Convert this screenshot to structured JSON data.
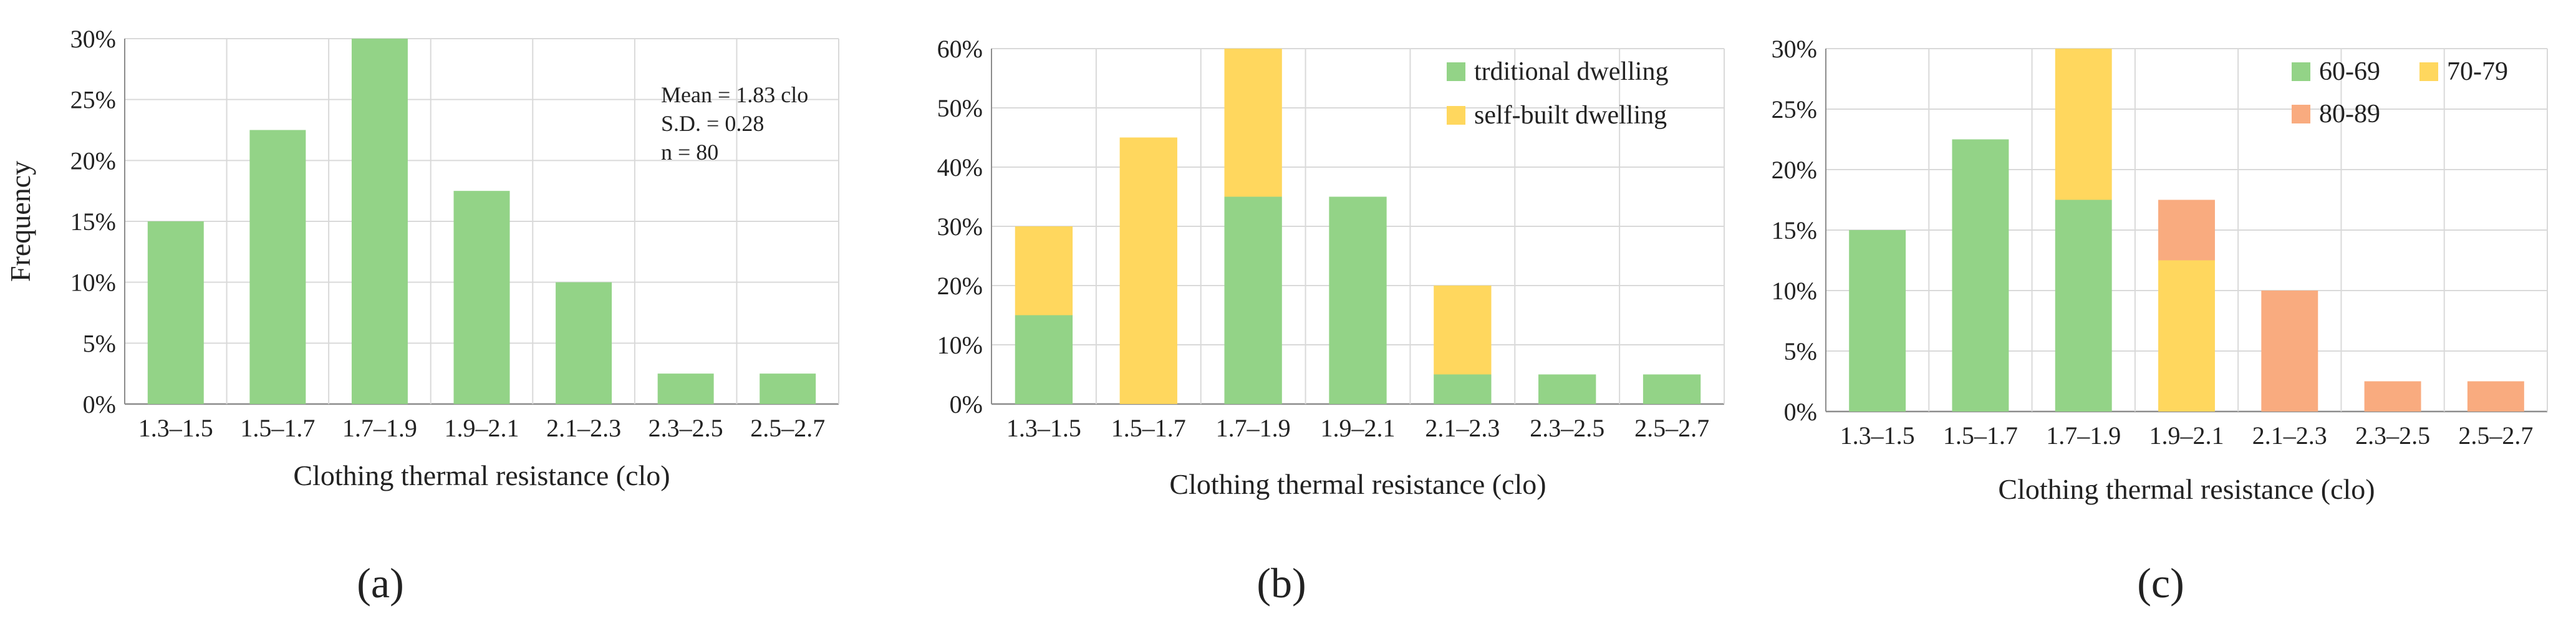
{
  "colors": {
    "green": "#93d387",
    "yellow": "#ffd75e",
    "orange": "#f9ab7f",
    "grid": "#d9d9d9",
    "axis": "#8c8c8c"
  },
  "chart_data": [
    {
      "type": "bar",
      "panel_label": "(a)",
      "categories": [
        "1.3–1.5",
        "1.5–1.7",
        "1.7–1.9",
        "1.9–2.1",
        "2.1–2.3",
        "2.3–2.5",
        "2.5–2.7"
      ],
      "series": [
        {
          "color": "green",
          "values": [
            15,
            22.5,
            30,
            17.5,
            10,
            2.5,
            2.5
          ]
        }
      ],
      "xlabel": "Clothing thermal resistance (clo)",
      "ylabel": "Frequency",
      "ylim": [
        0,
        30
      ],
      "yticks": [
        "0%",
        "5%",
        "10%",
        "15%",
        "20%",
        "25%",
        "30%"
      ],
      "annotations": [
        "Mean = 1.83 clo",
        "S.D. = 0.28",
        "n = 80"
      ],
      "grid": true
    },
    {
      "type": "bar",
      "stacked": true,
      "panel_label": "(b)",
      "categories": [
        "1.3–1.5",
        "1.5–1.7",
        "1.7–1.9",
        "1.9–2.1",
        "2.1–2.3",
        "2.3–2.5",
        "2.5–2.7"
      ],
      "series": [
        {
          "name": "trditional dwelling",
          "color": "green",
          "values": [
            15,
            0,
            35,
            35,
            5,
            5,
            5
          ]
        },
        {
          "name": "self-built dwelling",
          "color": "yellow",
          "values": [
            15,
            45,
            25,
            0,
            15,
            0,
            0
          ]
        }
      ],
      "xlabel": "Clothing thermal resistance (clo)",
      "ylabel": "",
      "ylim": [
        0,
        60
      ],
      "yticks": [
        "0%",
        "10%",
        "20%",
        "30%",
        "40%",
        "50%",
        "60%"
      ],
      "legend": "top-right",
      "grid": true
    },
    {
      "type": "bar",
      "stacked": true,
      "panel_label": "(c)",
      "categories": [
        "1.3–1.5",
        "1.5–1.7",
        "1.7–1.9",
        "1.9–2.1",
        "2.1–2.3",
        "2.3–2.5",
        "2.5–2.7"
      ],
      "series": [
        {
          "name": "60-69",
          "color": "green",
          "values": [
            15,
            22.5,
            17.5,
            0,
            0,
            0,
            0
          ]
        },
        {
          "name": "70-79",
          "color": "yellow",
          "values": [
            0,
            0,
            12.5,
            12.5,
            0,
            0,
            0
          ]
        },
        {
          "name": "80-89",
          "color": "orange",
          "values": [
            0,
            0,
            0,
            5,
            10,
            2.5,
            2.5
          ]
        }
      ],
      "xlabel": "Clothing thermal resistance (clo)",
      "ylabel": "",
      "ylim": [
        0,
        30
      ],
      "yticks": [
        "0%",
        "5%",
        "10%",
        "15%",
        "20%",
        "25%",
        "30%"
      ],
      "legend": "top-right",
      "grid": true
    }
  ]
}
